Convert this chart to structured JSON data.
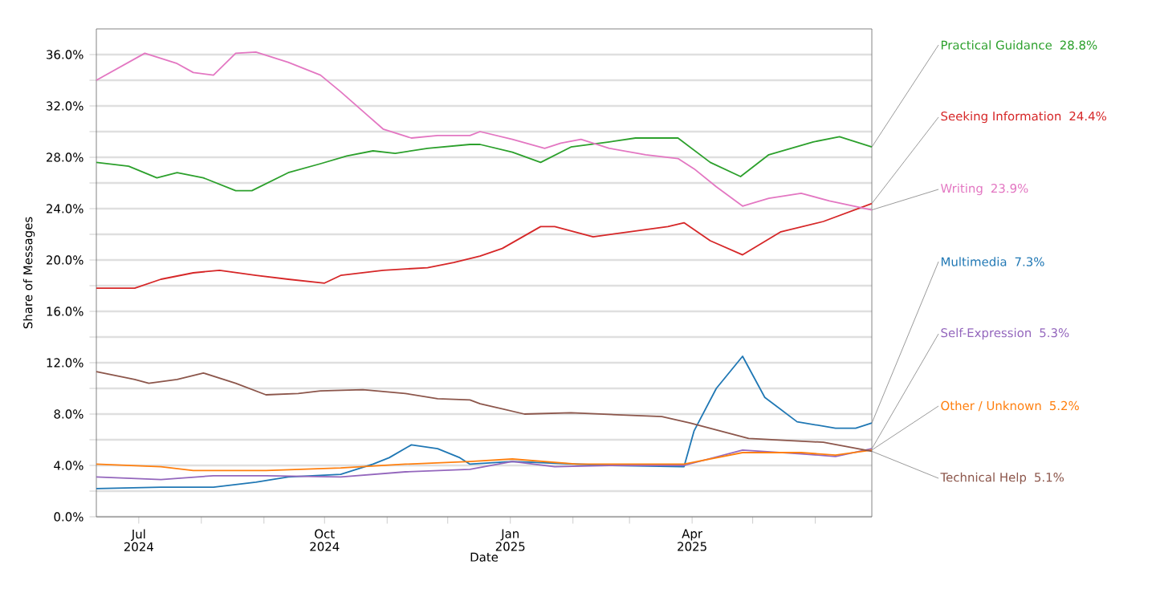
{
  "chart_data": {
    "type": "line",
    "xlabel": "Date",
    "ylabel": "Share of Messages",
    "grid": "y",
    "legend": false,
    "marker": "none",
    "line_style": "solid",
    "xlim": [
      "2024-06-10",
      "2025-06-29"
    ],
    "ylim": [
      0,
      38
    ],
    "xticks": [
      {
        "value": "2024-07-01",
        "label": "Jul 2024"
      },
      {
        "value": "2024-08-01",
        "label": null
      },
      {
        "value": "2024-09-01",
        "label": null
      },
      {
        "value": "2024-10-01",
        "label": "Oct 2024"
      },
      {
        "value": "2024-11-01",
        "label": null
      },
      {
        "value": "2024-12-01",
        "label": null
      },
      {
        "value": "2025-01-01",
        "label": "Jan 2025"
      },
      {
        "value": "2025-02-01",
        "label": null
      },
      {
        "value": "2025-03-01",
        "label": null
      },
      {
        "value": "2025-04-01",
        "label": "Apr 2025"
      },
      {
        "value": "2025-05-01",
        "label": null
      },
      {
        "value": "2025-06-01",
        "label": null
      }
    ],
    "yticks": [
      {
        "value": 0,
        "label": "0.0%"
      },
      {
        "value": 2,
        "label": null
      },
      {
        "value": 4,
        "label": "4.0%"
      },
      {
        "value": 6,
        "label": null
      },
      {
        "value": 8,
        "label": "8.0%"
      },
      {
        "value": 10,
        "label": null
      },
      {
        "value": 12,
        "label": "12.0%"
      },
      {
        "value": 14,
        "label": null
      },
      {
        "value": 16,
        "label": "16.0%"
      },
      {
        "value": 18,
        "label": null
      },
      {
        "value": 20,
        "label": "20.0%"
      },
      {
        "value": 22,
        "label": null
      },
      {
        "value": 24,
        "label": "24.0%"
      },
      {
        "value": 26,
        "label": null
      },
      {
        "value": 28,
        "label": "28.0%"
      },
      {
        "value": 30,
        "label": null
      },
      {
        "value": 32,
        "label": "32.0%"
      },
      {
        "value": 34,
        "label": null
      },
      {
        "value": 36,
        "label": "36.0%"
      }
    ],
    "series": [
      {
        "name": "Practical Guidance",
        "color": "#2ca02c",
        "x": [
          "2024-06-10",
          "2024-06-26",
          "2024-07-10",
          "2024-07-20",
          "2024-08-02",
          "2024-08-18",
          "2024-08-26",
          "2024-09-13",
          "2024-09-29",
          "2024-10-12",
          "2024-10-25",
          "2024-11-05",
          "2024-11-21",
          "2024-12-12",
          "2024-12-17",
          "2025-01-02",
          "2025-01-16",
          "2025-01-31",
          "2025-02-19",
          "2025-03-04",
          "2025-03-25",
          "2025-04-10",
          "2025-04-25",
          "2025-05-09",
          "2025-05-31",
          "2025-06-13",
          "2025-06-29"
        ],
        "values": [
          27.6,
          27.3,
          26.4,
          26.8,
          26.4,
          25.4,
          25.4,
          26.8,
          27.5,
          28.1,
          28.5,
          28.3,
          28.7,
          29.0,
          29.0,
          28.4,
          27.6,
          28.8,
          29.2,
          29.5,
          29.5,
          27.6,
          26.5,
          28.2,
          29.2,
          29.6,
          28.8
        ]
      },
      {
        "name": "Seeking Information",
        "color": "#d62728",
        "x": [
          "2024-06-10",
          "2024-06-29",
          "2024-07-12",
          "2024-07-28",
          "2024-08-10",
          "2024-08-28",
          "2024-09-13",
          "2024-10-01",
          "2024-10-09",
          "2024-10-30",
          "2024-11-21",
          "2024-12-04",
          "2024-12-17",
          "2024-12-28",
          "2025-01-16",
          "2025-01-23",
          "2025-02-11",
          "2025-03-01",
          "2025-03-20",
          "2025-03-28",
          "2025-04-10",
          "2025-04-26",
          "2025-05-15",
          "2025-06-05",
          "2025-06-29"
        ],
        "values": [
          17.8,
          17.8,
          18.5,
          19.0,
          19.2,
          18.8,
          18.5,
          18.2,
          18.8,
          19.2,
          19.4,
          19.8,
          20.3,
          20.9,
          22.6,
          22.6,
          21.8,
          22.2,
          22.6,
          22.9,
          21.5,
          20.4,
          22.2,
          23.0,
          24.4
        ]
      },
      {
        "name": "Writing",
        "color": "#e377c2",
        "x": [
          "2024-06-10",
          "2024-07-04",
          "2024-07-20",
          "2024-07-28",
          "2024-08-07",
          "2024-08-18",
          "2024-08-28",
          "2024-09-13",
          "2024-09-29",
          "2024-10-09",
          "2024-10-22",
          "2024-10-30",
          "2024-11-13",
          "2024-11-26",
          "2024-12-12",
          "2024-12-17",
          "2025-01-02",
          "2025-01-18",
          "2025-01-26",
          "2025-02-05",
          "2025-02-19",
          "2025-03-09",
          "2025-03-25",
          "2025-04-02",
          "2025-04-13",
          "2025-04-26",
          "2025-05-09",
          "2025-05-25",
          "2025-06-08",
          "2025-06-29"
        ],
        "values": [
          34.0,
          36.1,
          35.3,
          34.6,
          34.4,
          36.1,
          36.2,
          35.4,
          34.4,
          33.1,
          31.3,
          30.2,
          29.5,
          29.7,
          29.7,
          30.0,
          29.4,
          28.7,
          29.1,
          29.4,
          28.7,
          28.2,
          27.9,
          27.1,
          25.7,
          24.2,
          24.8,
          25.2,
          24.6,
          23.9
        ]
      },
      {
        "name": "Multimedia",
        "color": "#1f77b4",
        "x": [
          "2024-06-10",
          "2024-07-12",
          "2024-08-07",
          "2024-08-28",
          "2024-09-13",
          "2024-10-09",
          "2024-10-25",
          "2024-11-02",
          "2024-11-13",
          "2024-11-26",
          "2024-12-07",
          "2024-12-12",
          "2025-01-02",
          "2025-02-19",
          "2025-03-28",
          "2025-04-02",
          "2025-04-13",
          "2025-04-26",
          "2025-05-07",
          "2025-05-23",
          "2025-06-11",
          "2025-06-21",
          "2025-06-29"
        ],
        "values": [
          2.2,
          2.3,
          2.3,
          2.7,
          3.1,
          3.3,
          4.1,
          4.6,
          5.6,
          5.3,
          4.6,
          4.1,
          4.3,
          4.0,
          3.9,
          6.7,
          10.0,
          12.5,
          9.3,
          7.4,
          6.9,
          6.9,
          7.3
        ]
      },
      {
        "name": "Self-Expression",
        "color": "#9467bd",
        "x": [
          "2024-06-10",
          "2024-07-12",
          "2024-08-07",
          "2024-09-02",
          "2024-10-09",
          "2024-11-10",
          "2024-12-12",
          "2025-01-02",
          "2025-01-23",
          "2025-02-19",
          "2025-03-28",
          "2025-04-26",
          "2025-05-25",
          "2025-06-11",
          "2025-06-29"
        ],
        "values": [
          3.1,
          2.9,
          3.2,
          3.2,
          3.1,
          3.5,
          3.7,
          4.3,
          3.9,
          4.0,
          4.0,
          5.2,
          4.9,
          4.7,
          5.3
        ]
      },
      {
        "name": "Other / Unknown",
        "color": "#ff7f0e",
        "x": [
          "2024-06-10",
          "2024-07-12",
          "2024-07-28",
          "2024-09-02",
          "2024-10-09",
          "2024-11-10",
          "2024-12-12",
          "2025-01-02",
          "2025-02-03",
          "2025-03-28",
          "2025-04-26",
          "2025-05-25",
          "2025-06-11",
          "2025-06-29"
        ],
        "values": [
          4.1,
          3.9,
          3.6,
          3.6,
          3.8,
          4.1,
          4.3,
          4.5,
          4.1,
          4.1,
          5.0,
          5.0,
          4.8,
          5.2
        ]
      },
      {
        "name": "Technical Help",
        "color": "#8c564b",
        "x": [
          "2024-06-10",
          "2024-06-29",
          "2024-07-06",
          "2024-07-20",
          "2024-08-02",
          "2024-08-18",
          "2024-09-02",
          "2024-09-18",
          "2024-09-29",
          "2024-10-20",
          "2024-11-10",
          "2024-11-26",
          "2024-12-12",
          "2024-12-17",
          "2024-12-20",
          "2025-01-08",
          "2025-01-31",
          "2025-03-17",
          "2025-03-31",
          "2025-04-29",
          "2025-06-05",
          "2025-06-29"
        ],
        "values": [
          11.3,
          10.7,
          10.4,
          10.7,
          11.2,
          10.4,
          9.5,
          9.6,
          9.8,
          9.9,
          9.6,
          9.2,
          9.1,
          8.8,
          8.7,
          8.0,
          8.1,
          7.8,
          7.3,
          6.1,
          5.8,
          5.1
        ]
      }
    ],
    "annotations": [
      "28.8%",
      "24.4%",
      "23.9%",
      "7.3%",
      "5.3%",
      "5.2%",
      "5.1%"
    ]
  }
}
